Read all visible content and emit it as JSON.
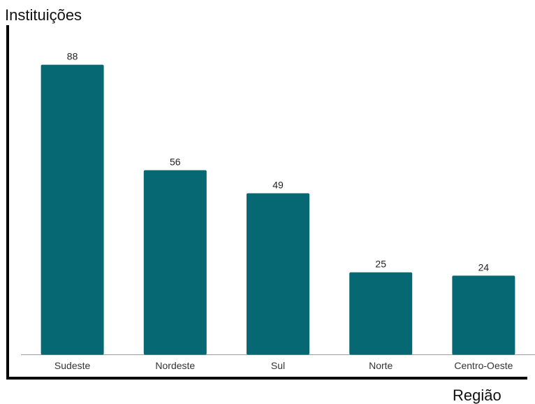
{
  "chart_data": {
    "type": "bar",
    "ylabel": "Instituições",
    "xlabel": "Região",
    "categories": [
      "Sudeste",
      "Nordeste",
      "Sul",
      "Norte",
      "Centro-Oeste"
    ],
    "values": [
      88,
      56,
      49,
      25,
      24
    ],
    "ylim": [
      0,
      100
    ],
    "grid": false,
    "bar_color": "#056872",
    "axis_color": "#000000",
    "baseline_color": "#9e9e9e"
  }
}
